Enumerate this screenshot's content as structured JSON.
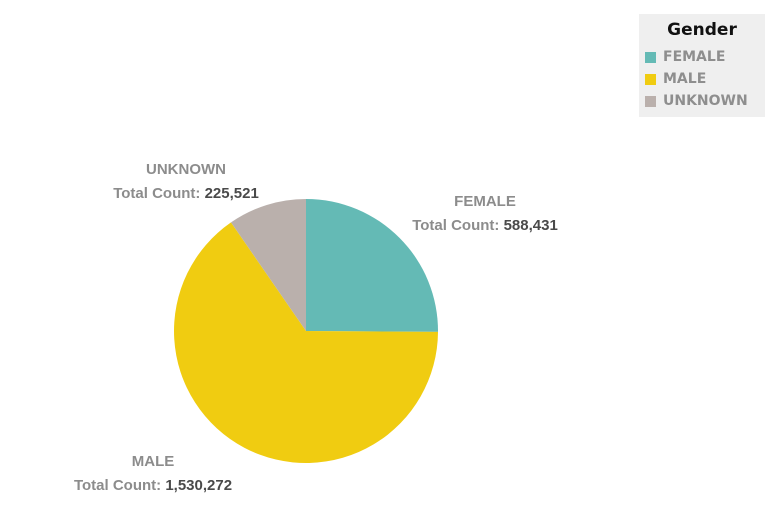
{
  "chart_data": {
    "type": "pie",
    "legend_title": "Gender",
    "legend_position": "top-right",
    "slices": [
      {
        "name": "FEMALE",
        "value": 588431,
        "color": "#64bab5",
        "count_label": "Total Count:",
        "count_text": "588,431"
      },
      {
        "name": "MALE",
        "value": 1530272,
        "color": "#f0cc11",
        "count_label": "Total Count:",
        "count_text": "1,530,272"
      },
      {
        "name": "UNKNOWN",
        "value": 225521,
        "color": "#bab0ac",
        "count_label": "Total Count:",
        "count_text": "225,521"
      }
    ]
  }
}
